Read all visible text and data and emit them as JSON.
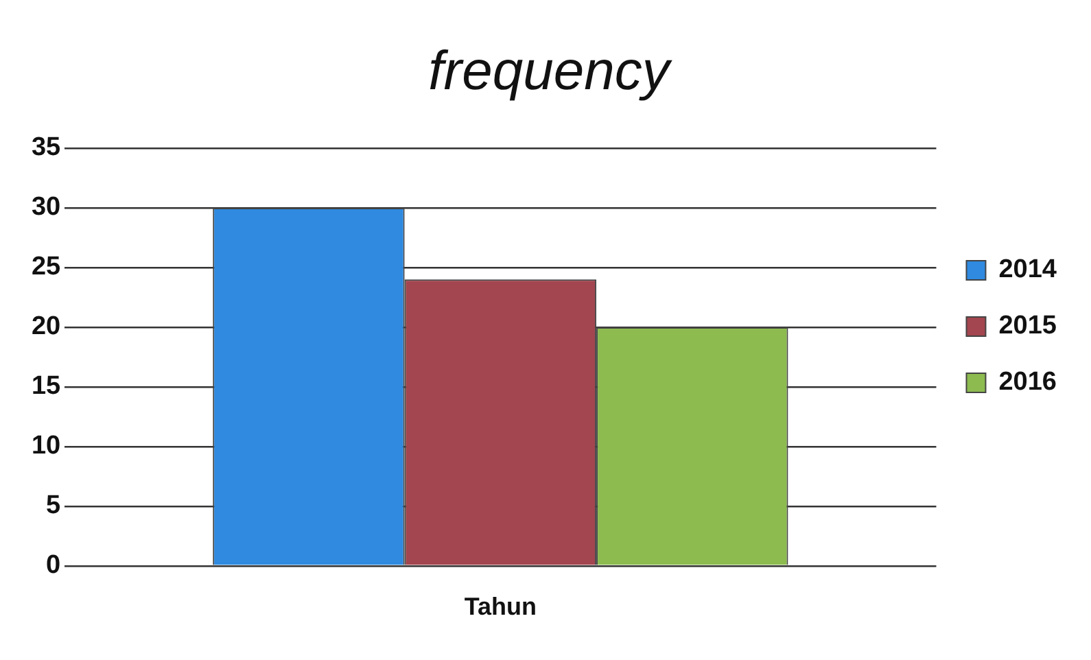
{
  "chart_data": {
    "type": "bar",
    "title": "frequency",
    "categories": [
      "Tahun"
    ],
    "series": [
      {
        "name": "2014",
        "color": "#2f8ae0",
        "values": [
          30
        ]
      },
      {
        "name": "2015",
        "color": "#a3464f",
        "values": [
          24
        ]
      },
      {
        "name": "2016",
        "color": "#8dbb50",
        "values": [
          20
        ]
      }
    ],
    "ylim": [
      0,
      35
    ],
    "yticks": [
      0,
      5,
      10,
      15,
      20,
      25,
      30,
      35
    ],
    "grid": "y",
    "legend": "right"
  }
}
